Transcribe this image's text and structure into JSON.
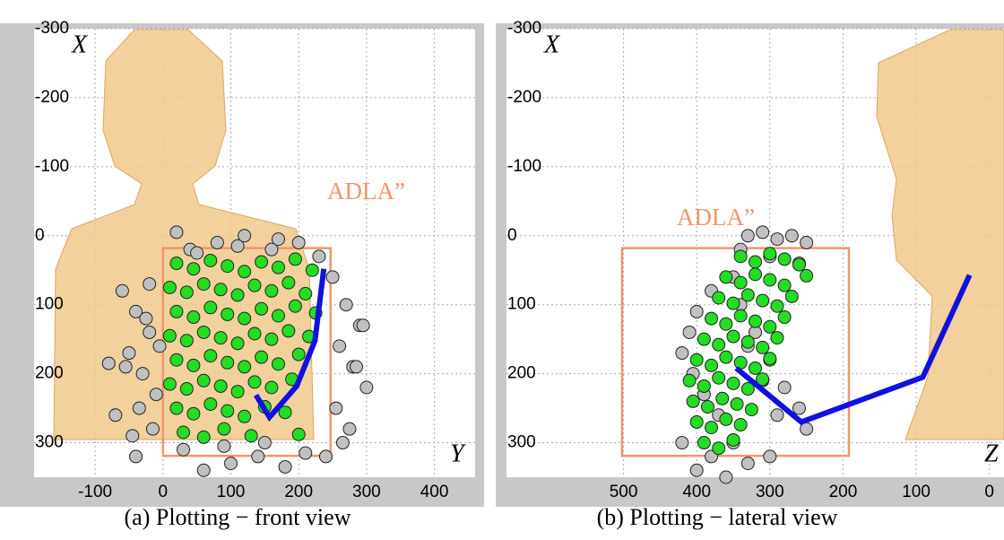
{
  "chart_data": [
    {
      "type": "scatter",
      "caption": "(a) Plotting − front view",
      "ylabel": "X",
      "xlabel": "Y",
      "xlim": [
        -190,
        460
      ],
      "ylim": [
        -300,
        350
      ],
      "y_inverted": true,
      "grid": true,
      "xticks": [
        -100,
        0,
        100,
        200,
        300,
        400
      ],
      "yticks": [
        -300,
        -200,
        -100,
        0,
        100,
        200,
        300
      ],
      "region": {
        "label": "ADLA”",
        "color": "#f4956a",
        "xlim": [
          0,
          247
        ],
        "ylim": [
          18,
          319
        ]
      },
      "series": [
        {
          "color": "#c0c0c0",
          "mode": "points",
          "x": [
            -60,
            -40,
            -20,
            -50,
            -30,
            -10,
            -70,
            -45,
            -25,
            -5,
            -55,
            -35,
            -15,
            -80,
            -40,
            -20,
            250,
            270,
            290,
            260,
            280,
            300,
            255,
            275,
            295,
            265,
            285,
            40,
            80,
            120,
            160,
            200,
            60,
            100,
            140,
            180,
            30,
            90,
            150,
            210,
            240,
            50,
            110,
            170,
            230,
            20
          ],
          "values": [
            80,
            110,
            140,
            170,
            200,
            230,
            260,
            290,
            120,
            160,
            190,
            250,
            280,
            185,
            320,
            70,
            60,
            100,
            130,
            160,
            190,
            220,
            250,
            280,
            130,
            300,
            190,
            20,
            10,
            0,
            20,
            10,
            340,
            330,
            320,
            335,
            310,
            305,
            300,
            315,
            320,
            25,
            15,
            5,
            30,
            -5
          ]
        },
        {
          "color": "#22dd22",
          "mode": "points",
          "x": [
            20,
            45,
            70,
            95,
            120,
            145,
            170,
            195,
            220,
            10,
            35,
            60,
            85,
            110,
            135,
            160,
            185,
            210,
            20,
            45,
            70,
            95,
            120,
            145,
            170,
            195,
            225,
            10,
            35,
            60,
            85,
            110,
            135,
            160,
            185,
            215,
            20,
            45,
            70,
            95,
            120,
            145,
            170,
            200,
            10,
            35,
            60,
            85,
            110,
            135,
            160,
            190,
            20,
            45,
            70,
            95,
            120,
            150,
            180,
            30,
            60,
            90,
            130,
            200
          ],
          "values": [
            40,
            48,
            36,
            44,
            52,
            38,
            46,
            34,
            50,
            75,
            82,
            70,
            78,
            86,
            72,
            80,
            68,
            84,
            110,
            118,
            104,
            114,
            120,
            106,
            116,
            102,
            112,
            145,
            152,
            140,
            148,
            156,
            142,
            150,
            138,
            146,
            180,
            188,
            174,
            184,
            190,
            176,
            186,
            172,
            215,
            222,
            210,
            218,
            226,
            212,
            220,
            208,
            250,
            258,
            244,
            254,
            262,
            248,
            256,
            285,
            292,
            280,
            290,
            288
          ]
        },
        {
          "color": "#1010e0",
          "mode": "line",
          "x": [
            237,
            224,
            197,
            157,
            137
          ],
          "values": [
            48,
            152,
            218,
            263,
            231
          ]
        }
      ]
    },
    {
      "type": "scatter",
      "caption": "(b) Plotting − lateral view",
      "ylabel": "X",
      "xlabel": "Z",
      "xlim": [
        660,
        -20
      ],
      "ylim": [
        -300,
        350
      ],
      "y_inverted": true,
      "grid": true,
      "xticks": [
        500,
        400,
        300,
        200,
        100,
        0
      ],
      "yticks": [
        -300,
        -200,
        -100,
        0,
        100,
        200,
        300
      ],
      "region": {
        "label": "ADLA”",
        "color": "#f4956a",
        "xlim": [
          502,
          192
        ],
        "ylim": [
          18,
          319
        ]
      },
      "series": [
        {
          "color": "#c0c0c0",
          "mode": "points",
          "x": [
            330,
            310,
            290,
            270,
            250,
            340,
            300,
            260,
            350,
            380,
            400,
            410,
            420,
            405,
            390,
            370,
            250,
            260,
            280,
            300,
            320,
            340,
            330,
            310,
            290,
            350,
            380,
            400,
            360,
            420,
            330,
            300
          ],
          "values": [
            0,
            -5,
            5,
            0,
            10,
            20,
            30,
            40,
            60,
            80,
            110,
            140,
            170,
            200,
            230,
            260,
            280,
            250,
            220,
            180,
            140,
            100,
            160,
            210,
            260,
            300,
            320,
            340,
            350,
            300,
            330,
            320
          ]
        },
        {
          "color": "#22dd22",
          "mode": "points",
          "x": [
            340,
            320,
            300,
            280,
            260,
            360,
            340,
            320,
            300,
            280,
            250,
            370,
            350,
            330,
            310,
            290,
            270,
            380,
            360,
            340,
            320,
            300,
            280,
            390,
            370,
            350,
            330,
            310,
            290,
            400,
            380,
            360,
            340,
            320,
            300,
            410,
            390,
            370,
            350,
            330,
            310,
            405,
            385,
            365,
            345,
            325,
            400,
            380,
            360,
            340,
            390,
            370,
            350
          ],
          "values": [
            30,
            38,
            26,
            34,
            42,
            60,
            68,
            56,
            64,
            72,
            58,
            90,
            98,
            86,
            94,
            102,
            88,
            120,
            128,
            116,
            124,
            132,
            118,
            150,
            158,
            146,
            154,
            162,
            148,
            180,
            188,
            176,
            184,
            192,
            178,
            210,
            218,
            206,
            214,
            222,
            208,
            240,
            248,
            236,
            244,
            252,
            270,
            278,
            266,
            274,
            300,
            308,
            296
          ]
        },
        {
          "color": "#1010e0",
          "mode": "line",
          "x": [
            27,
            91,
            257,
            346
          ],
          "values": [
            57,
            205,
            270,
            192
          ]
        }
      ]
    }
  ]
}
